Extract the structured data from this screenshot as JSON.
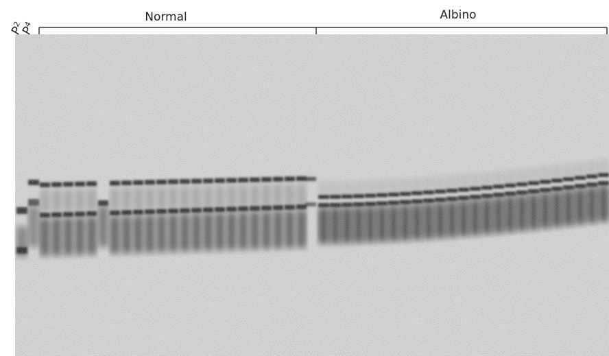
{
  "lanes": [
    {
      "letter": "P",
      "subscript": "2"
    },
    {
      "letter": "P",
      "subscript": "4"
    }
  ],
  "groups": [
    {
      "label": "Normal"
    },
    {
      "label": "Albino"
    }
  ]
}
